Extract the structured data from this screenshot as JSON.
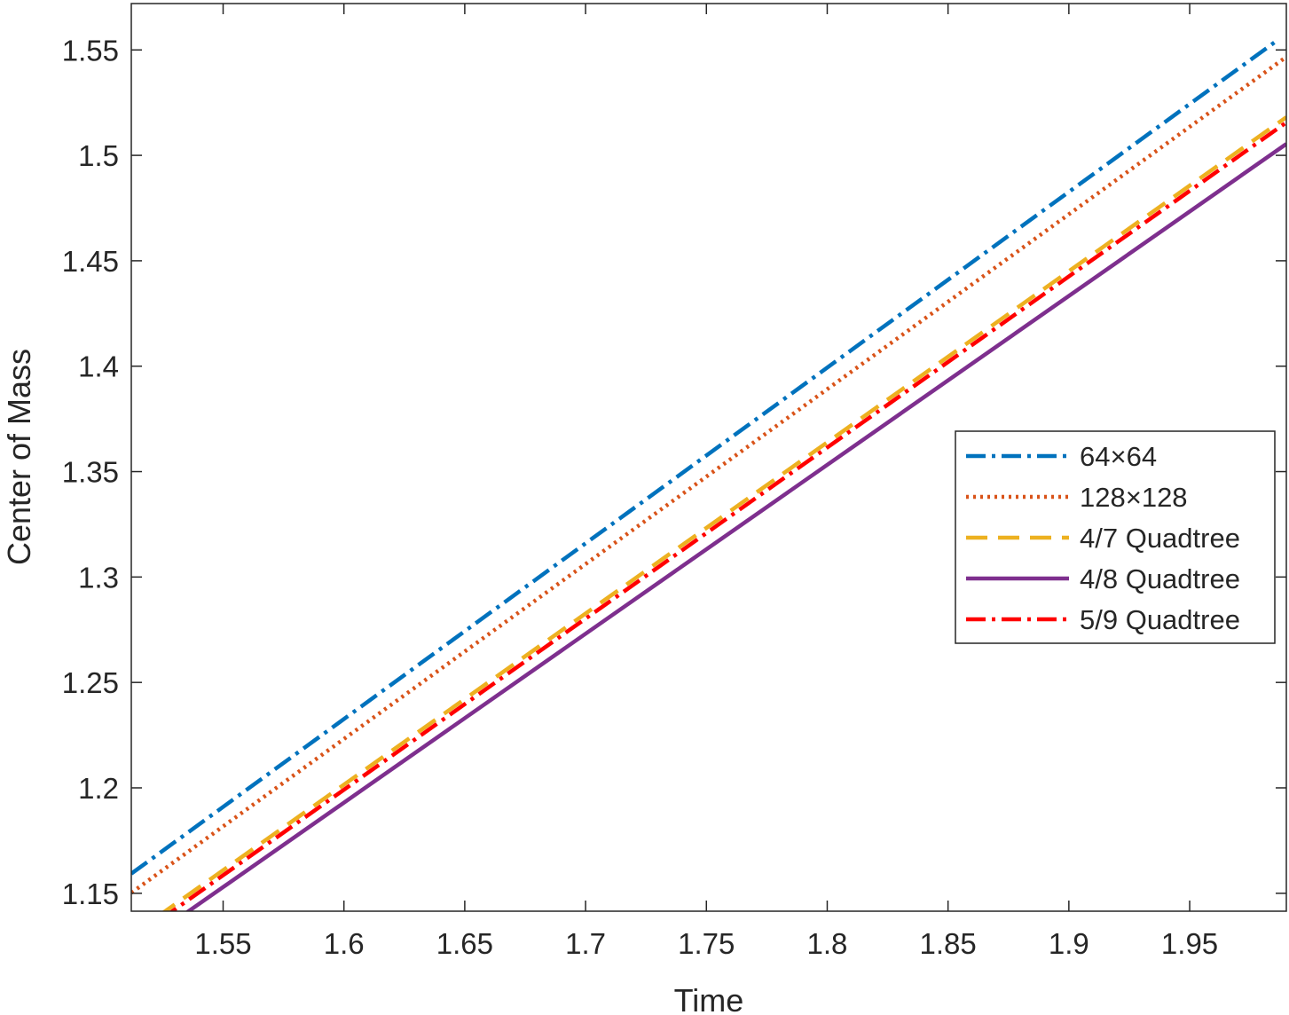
{
  "chart_data": {
    "type": "line",
    "title": "",
    "xlabel": "Time",
    "ylabel": "Center of Mass",
    "xlim": [
      1.512,
      1.99
    ],
    "ylim": [
      1.1415,
      1.572
    ],
    "xticks": [
      1.55,
      1.6,
      1.65,
      1.7,
      1.75,
      1.8,
      1.85,
      1.9,
      1.95
    ],
    "xtick_labels": [
      "1.55",
      "1.6",
      "1.65",
      "1.7",
      "1.75",
      "1.8",
      "1.85",
      "1.9",
      "1.95"
    ],
    "yticks": [
      1.15,
      1.2,
      1.25,
      1.3,
      1.35,
      1.4,
      1.45,
      1.5,
      1.55
    ],
    "ytick_labels": [
      "1.15",
      "1.2",
      "1.25",
      "1.3",
      "1.35",
      "1.4",
      "1.45",
      "1.5",
      "1.55"
    ],
    "grid": false,
    "legend_position": "center-right",
    "series": [
      {
        "name": "64×64",
        "color": "#0072BD",
        "style": "dashdot",
        "x": [
          1.512,
          1.985
        ],
        "y": [
          1.1593,
          1.5535
        ]
      },
      {
        "name": "128×128",
        "color": "#D95319",
        "style": "dotted",
        "x": [
          1.512,
          1.99
        ],
        "y": [
          1.1502,
          1.5467
        ]
      },
      {
        "name": "4/7 Quadtree",
        "color": "#EDB120",
        "style": "dashed",
        "x": [
          1.512,
          1.99
        ],
        "y": [
          1.1301,
          1.5181
        ]
      },
      {
        "name": "4/8 Quadtree",
        "color": "#7E2F8E",
        "style": "solid",
        "x": [
          1.512,
          1.99
        ],
        "y": [
          1.1225,
          1.5054
        ]
      },
      {
        "name": "5/9 Quadtree",
        "color": "#FF0000",
        "style": "dashdot",
        "x": [
          1.512,
          1.99
        ],
        "y": [
          1.1277,
          1.5156
        ]
      }
    ]
  }
}
